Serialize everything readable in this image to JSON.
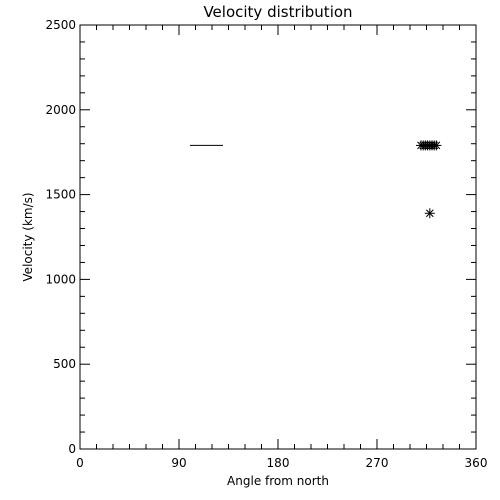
{
  "chart_data": {
    "type": "scatter",
    "title": "Velocity distribution",
    "xlabel": "Angle from north",
    "ylabel": "Velocity (km/s)",
    "xlim": [
      0,
      360
    ],
    "ylim": [
      0,
      2500
    ],
    "x_ticks": [
      "0",
      "90",
      "180",
      "270",
      "360"
    ],
    "y_ticks": [
      "0",
      "500",
      "1000",
      "1500",
      "2000",
      "2500"
    ],
    "grid": false,
    "line_segment": {
      "x": [
        100,
        130
      ],
      "y": [
        1790,
        1790
      ]
    },
    "points": [
      {
        "x": 310,
        "y": 1790
      },
      {
        "x": 312,
        "y": 1790
      },
      {
        "x": 314,
        "y": 1790
      },
      {
        "x": 316,
        "y": 1790
      },
      {
        "x": 318,
        "y": 1790
      },
      {
        "x": 320,
        "y": 1790
      },
      {
        "x": 322,
        "y": 1790
      },
      {
        "x": 324,
        "y": 1790
      },
      {
        "x": 318,
        "y": 1390
      }
    ],
    "colors": {
      "foreground": "#000000",
      "background": "#ffffff"
    }
  }
}
